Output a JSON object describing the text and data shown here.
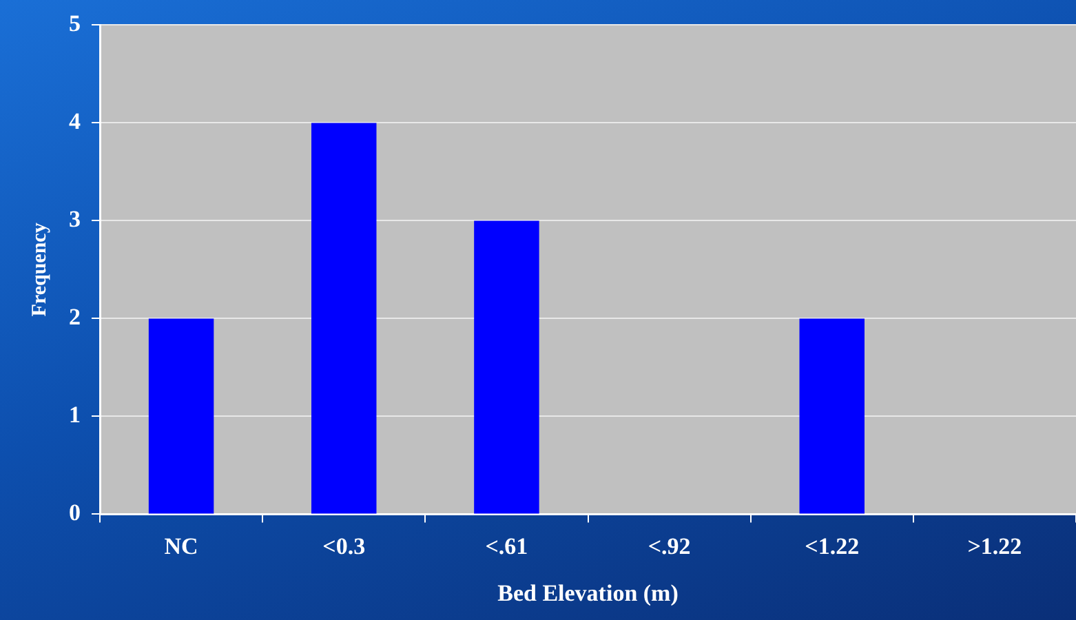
{
  "chart_data": {
    "type": "bar",
    "xlabel": "Bed Elevation (m)",
    "ylabel": "Frequency",
    "categories": [
      "NC",
      "<0.3",
      "<.61",
      "<.92",
      "<1.22",
      ">1.22"
    ],
    "values": [
      2,
      4,
      3,
      0,
      2,
      0
    ],
    "color": "#0000ff",
    "ylim": [
      0,
      5
    ],
    "yticks": [
      0,
      1,
      2,
      3,
      4,
      5
    ],
    "grid": "y",
    "legend": false
  }
}
